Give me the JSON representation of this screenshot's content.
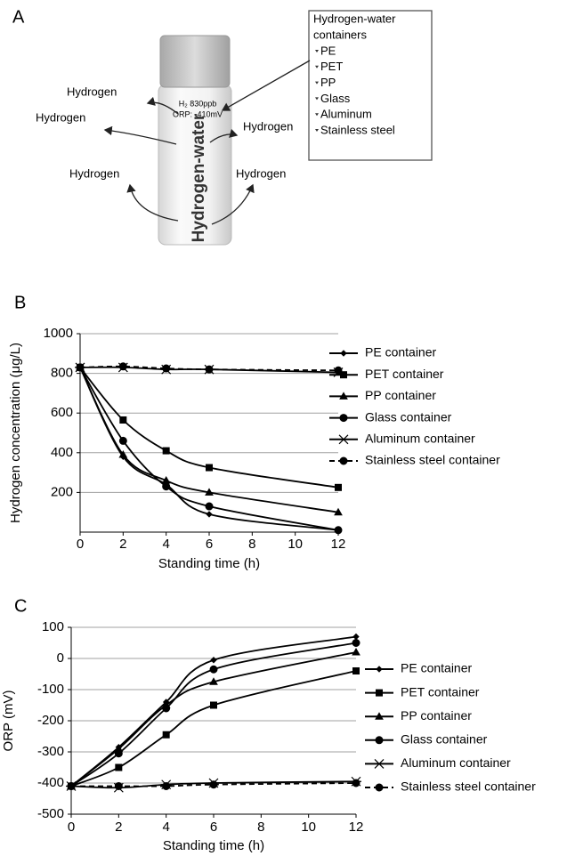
{
  "panel_labels": [
    "A",
    "B",
    "C"
  ],
  "diagram": {
    "bottle": {
      "line1": "H₂  830ppb",
      "line2": "ORP: -410mV",
      "label": "Hydrogen-water"
    },
    "emissions": [
      "Hydrogen",
      "Hydrogen",
      "Hydrogen",
      "Hydrogen",
      "Hydrogen"
    ],
    "box": {
      "title": [
        "Hydrogen-water",
        "containers"
      ],
      "items": [
        "PE",
        "PET",
        "PP",
        "Glass",
        "Aluminum",
        "Stainless steel"
      ]
    }
  },
  "chart_data": [
    {
      "type": "line",
      "xlabel": "Standing time (h)",
      "ylabel": "Hydrogen concentration (μg/L)",
      "x": [
        0,
        2,
        4,
        6,
        12
      ],
      "xlim": [
        0,
        12
      ],
      "xticks": [
        0,
        2,
        4,
        6,
        8,
        10,
        12
      ],
      "ylim": [
        0,
        1000
      ],
      "yticks": [
        200,
        400,
        600,
        800,
        1000
      ],
      "grid": true,
      "legend": "right",
      "series": [
        {
          "name": "PE container",
          "color": "#000000",
          "marker": "diamond",
          "dashed": false,
          "values": [
            830,
            380,
            240,
            90,
            10
          ]
        },
        {
          "name": "PET container",
          "color": "#000000",
          "marker": "square",
          "dashed": false,
          "values": [
            830,
            565,
            410,
            325,
            225
          ]
        },
        {
          "name": "PP container",
          "color": "#000000",
          "marker": "triangle",
          "dashed": false,
          "values": [
            830,
            390,
            260,
            200,
            100
          ]
        },
        {
          "name": "Glass container",
          "color": "#000000",
          "marker": "circle",
          "dashed": false,
          "values": [
            830,
            460,
            230,
            130,
            10
          ]
        },
        {
          "name": "Aluminum container",
          "color": "#000000",
          "marker": "asterisk",
          "dashed": false,
          "values": [
            830,
            830,
            820,
            820,
            805
          ]
        },
        {
          "name": "Stainless steel container",
          "color": "#000000",
          "marker": "circle",
          "dashed": true,
          "values": [
            830,
            835,
            825,
            820,
            815
          ]
        }
      ]
    },
    {
      "type": "line",
      "xlabel": "Standing time (h)",
      "ylabel": "ORP (mV)",
      "x": [
        0,
        2,
        4,
        6,
        12
      ],
      "xlim": [
        0,
        12
      ],
      "xticks": [
        0,
        2,
        4,
        6,
        8,
        10,
        12
      ],
      "ylim": [
        -500,
        100
      ],
      "yticks": [
        -500,
        -400,
        -300,
        -200,
        -100,
        0,
        100
      ],
      "grid": true,
      "legend": "right",
      "series": [
        {
          "name": "PE container",
          "color": "#000000",
          "marker": "diamond",
          "dashed": false,
          "values": [
            -410,
            -285,
            -140,
            -5,
            70
          ]
        },
        {
          "name": "PET container",
          "color": "#000000",
          "marker": "square",
          "dashed": false,
          "values": [
            -410,
            -350,
            -245,
            -150,
            -40
          ]
        },
        {
          "name": "PP container",
          "color": "#000000",
          "marker": "triangle",
          "dashed": false,
          "values": [
            -410,
            -290,
            -150,
            -75,
            20
          ]
        },
        {
          "name": "Glass container",
          "color": "#000000",
          "marker": "circle",
          "dashed": false,
          "values": [
            -410,
            -305,
            -160,
            -35,
            50
          ]
        },
        {
          "name": "Aluminum container",
          "color": "#000000",
          "marker": "asterisk",
          "dashed": false,
          "values": [
            -410,
            -415,
            -405,
            -400,
            -395
          ]
        },
        {
          "name": "Stainless steel container",
          "color": "#000000",
          "marker": "circle",
          "dashed": true,
          "values": [
            -410,
            -410,
            -410,
            -405,
            -400
          ]
        }
      ]
    }
  ]
}
